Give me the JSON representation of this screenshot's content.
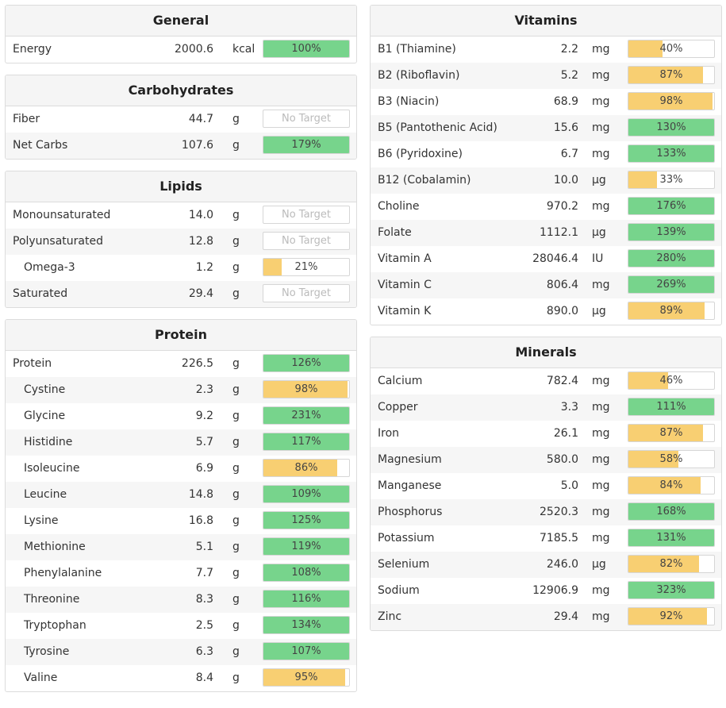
{
  "colors": {
    "green": "#77d48c",
    "yellow": "#f8cf72"
  },
  "left": [
    {
      "title": "General",
      "rows": [
        {
          "label": "Energy",
          "amount": "2000.6",
          "unit": "kcal",
          "pct": "100%",
          "fill": 1.0,
          "color": "green"
        }
      ]
    },
    {
      "title": "Carbohydrates",
      "rows": [
        {
          "label": "Fiber",
          "amount": "44.7",
          "unit": "g",
          "pct": "No Target",
          "fill": 0,
          "color": "none"
        },
        {
          "label": "Net Carbs",
          "amount": "107.6",
          "unit": "g",
          "pct": "179%",
          "fill": 1.0,
          "color": "green"
        }
      ]
    },
    {
      "title": "Lipids",
      "rows": [
        {
          "label": "Monounsaturated",
          "amount": "14.0",
          "unit": "g",
          "pct": "No Target",
          "fill": 0,
          "color": "none"
        },
        {
          "label": "Polyunsaturated",
          "amount": "12.8",
          "unit": "g",
          "pct": "No Target",
          "fill": 0,
          "color": "none"
        },
        {
          "label": "Omega-3",
          "amount": "1.2",
          "unit": "g",
          "pct": "21%",
          "fill": 0.21,
          "color": "yellow",
          "indent": true
        },
        {
          "label": "Saturated",
          "amount": "29.4",
          "unit": "g",
          "pct": "No Target",
          "fill": 0,
          "color": "none"
        }
      ]
    },
    {
      "title": "Protein",
      "rows": [
        {
          "label": "Protein",
          "amount": "226.5",
          "unit": "g",
          "pct": "126%",
          "fill": 1.0,
          "color": "green"
        },
        {
          "label": "Cystine",
          "amount": "2.3",
          "unit": "g",
          "pct": "98%",
          "fill": 0.98,
          "color": "yellow",
          "indent": true
        },
        {
          "label": "Glycine",
          "amount": "9.2",
          "unit": "g",
          "pct": "231%",
          "fill": 1.0,
          "color": "green",
          "indent": true
        },
        {
          "label": "Histidine",
          "amount": "5.7",
          "unit": "g",
          "pct": "117%",
          "fill": 1.0,
          "color": "green",
          "indent": true
        },
        {
          "label": "Isoleucine",
          "amount": "6.9",
          "unit": "g",
          "pct": "86%",
          "fill": 0.86,
          "color": "yellow",
          "indent": true
        },
        {
          "label": "Leucine",
          "amount": "14.8",
          "unit": "g",
          "pct": "109%",
          "fill": 1.0,
          "color": "green",
          "indent": true
        },
        {
          "label": "Lysine",
          "amount": "16.8",
          "unit": "g",
          "pct": "125%",
          "fill": 1.0,
          "color": "green",
          "indent": true
        },
        {
          "label": "Methionine",
          "amount": "5.1",
          "unit": "g",
          "pct": "119%",
          "fill": 1.0,
          "color": "green",
          "indent": true
        },
        {
          "label": "Phenylalanine",
          "amount": "7.7",
          "unit": "g",
          "pct": "108%",
          "fill": 1.0,
          "color": "green",
          "indent": true
        },
        {
          "label": "Threonine",
          "amount": "8.3",
          "unit": "g",
          "pct": "116%",
          "fill": 1.0,
          "color": "green",
          "indent": true
        },
        {
          "label": "Tryptophan",
          "amount": "2.5",
          "unit": "g",
          "pct": "134%",
          "fill": 1.0,
          "color": "green",
          "indent": true
        },
        {
          "label": "Tyrosine",
          "amount": "6.3",
          "unit": "g",
          "pct": "107%",
          "fill": 1.0,
          "color": "green",
          "indent": true
        },
        {
          "label": "Valine",
          "amount": "8.4",
          "unit": "g",
          "pct": "95%",
          "fill": 0.95,
          "color": "yellow",
          "indent": true
        }
      ]
    }
  ],
  "right": [
    {
      "title": "Vitamins",
      "rows": [
        {
          "label": "B1 (Thiamine)",
          "amount": "2.2",
          "unit": "mg",
          "pct": "40%",
          "fill": 0.4,
          "color": "yellow"
        },
        {
          "label": "B2 (Riboflavin)",
          "amount": "5.2",
          "unit": "mg",
          "pct": "87%",
          "fill": 0.87,
          "color": "yellow"
        },
        {
          "label": "B3 (Niacin)",
          "amount": "68.9",
          "unit": "mg",
          "pct": "98%",
          "fill": 0.98,
          "color": "yellow"
        },
        {
          "label": "B5 (Pantothenic Acid)",
          "amount": "15.6",
          "unit": "mg",
          "pct": "130%",
          "fill": 1.0,
          "color": "green"
        },
        {
          "label": "B6 (Pyridoxine)",
          "amount": "6.7",
          "unit": "mg",
          "pct": "133%",
          "fill": 1.0,
          "color": "green"
        },
        {
          "label": "B12 (Cobalamin)",
          "amount": "10.0",
          "unit": "µg",
          "pct": "33%",
          "fill": 0.33,
          "color": "yellow"
        },
        {
          "label": "Choline",
          "amount": "970.2",
          "unit": "mg",
          "pct": "176%",
          "fill": 1.0,
          "color": "green"
        },
        {
          "label": "Folate",
          "amount": "1112.1",
          "unit": "µg",
          "pct": "139%",
          "fill": 1.0,
          "color": "green"
        },
        {
          "label": "Vitamin A",
          "amount": "28046.4",
          "unit": "IU",
          "pct": "280%",
          "fill": 1.0,
          "color": "green"
        },
        {
          "label": "Vitamin C",
          "amount": "806.4",
          "unit": "mg",
          "pct": "269%",
          "fill": 1.0,
          "color": "green"
        },
        {
          "label": "Vitamin K",
          "amount": "890.0",
          "unit": "µg",
          "pct": "89%",
          "fill": 0.89,
          "color": "yellow"
        }
      ]
    },
    {
      "title": "Minerals",
      "rows": [
        {
          "label": "Calcium",
          "amount": "782.4",
          "unit": "mg",
          "pct": "46%",
          "fill": 0.46,
          "color": "yellow"
        },
        {
          "label": "Copper",
          "amount": "3.3",
          "unit": "mg",
          "pct": "111%",
          "fill": 1.0,
          "color": "green"
        },
        {
          "label": "Iron",
          "amount": "26.1",
          "unit": "mg",
          "pct": "87%",
          "fill": 0.87,
          "color": "yellow"
        },
        {
          "label": "Magnesium",
          "amount": "580.0",
          "unit": "mg",
          "pct": "58%",
          "fill": 0.58,
          "color": "yellow"
        },
        {
          "label": "Manganese",
          "amount": "5.0",
          "unit": "mg",
          "pct": "84%",
          "fill": 0.84,
          "color": "yellow"
        },
        {
          "label": "Phosphorus",
          "amount": "2520.3",
          "unit": "mg",
          "pct": "168%",
          "fill": 1.0,
          "color": "green"
        },
        {
          "label": "Potassium",
          "amount": "7185.5",
          "unit": "mg",
          "pct": "131%",
          "fill": 1.0,
          "color": "green"
        },
        {
          "label": "Selenium",
          "amount": "246.0",
          "unit": "µg",
          "pct": "82%",
          "fill": 0.82,
          "color": "yellow"
        },
        {
          "label": "Sodium",
          "amount": "12906.9",
          "unit": "mg",
          "pct": "323%",
          "fill": 1.0,
          "color": "green"
        },
        {
          "label": "Zinc",
          "amount": "29.4",
          "unit": "mg",
          "pct": "92%",
          "fill": 0.92,
          "color": "yellow"
        }
      ]
    }
  ]
}
